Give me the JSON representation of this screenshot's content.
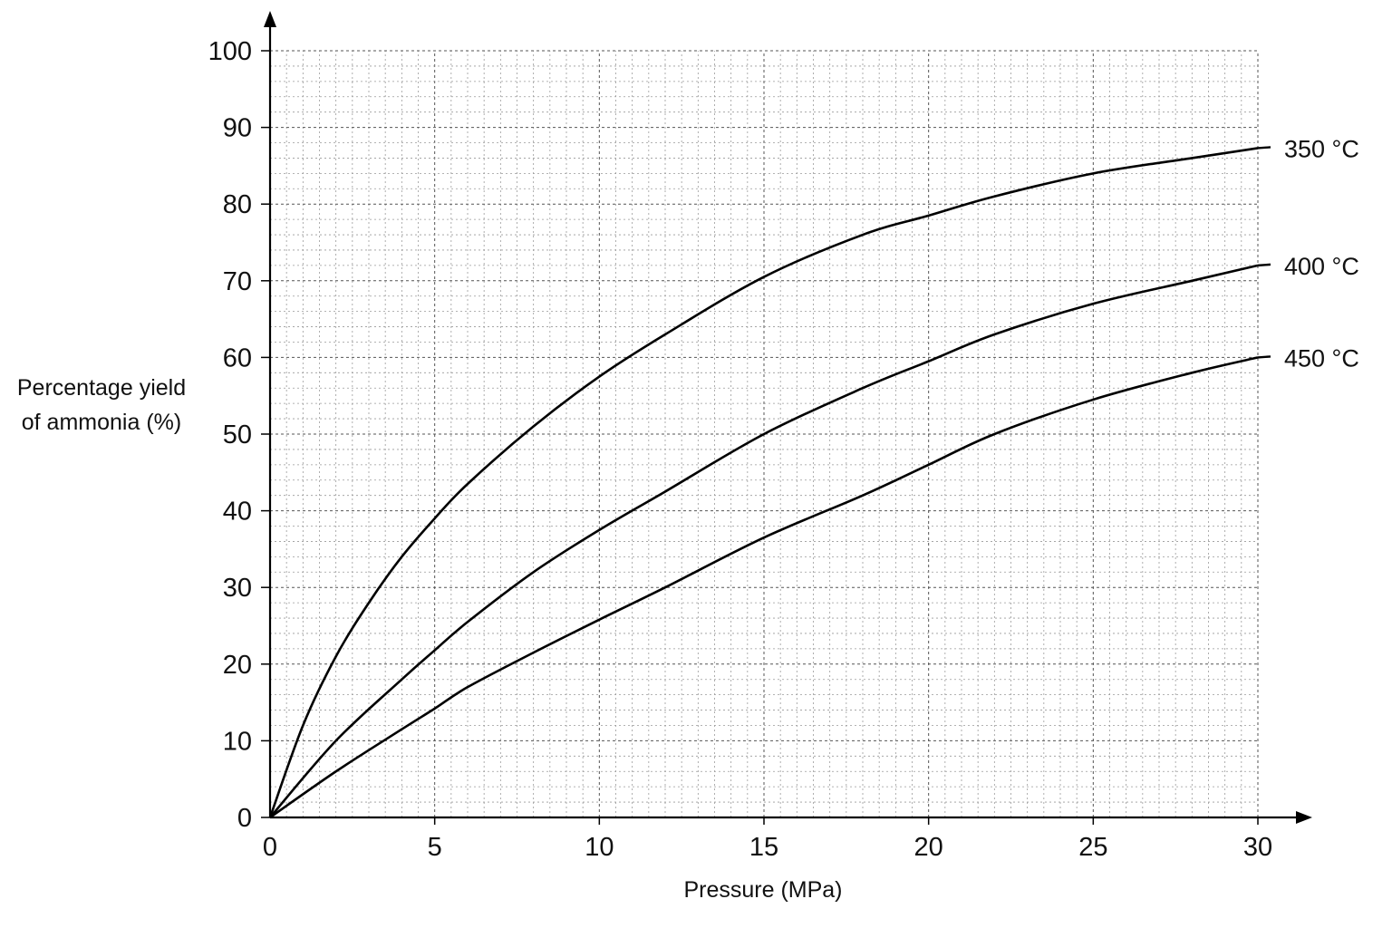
{
  "chart_data": {
    "type": "line",
    "title": "",
    "xlabel": "Pressure (MPa)",
    "ylabel": "Percentage yield of ammonia (%)",
    "ylabel_lines": [
      "Percentage yield",
      "of ammonia (%)"
    ],
    "xlim": [
      0,
      30
    ],
    "ylim": [
      0,
      100
    ],
    "xticks": [
      0,
      5,
      10,
      15,
      20,
      25,
      30
    ],
    "yticks": [
      0,
      10,
      20,
      30,
      40,
      50,
      60,
      70,
      80,
      90,
      100
    ],
    "grid": true,
    "legend": "series labels at right end of lines",
    "series": [
      {
        "name": "350 °C",
        "x": [
          0,
          1,
          2,
          3,
          4,
          5,
          6,
          8,
          10,
          12,
          15,
          18,
          20,
          22,
          25,
          28,
          30
        ],
        "y": [
          0,
          12,
          21,
          28,
          34,
          39,
          43.5,
          51,
          57.5,
          63,
          70.5,
          76,
          78.5,
          81,
          84,
          86,
          87.3
        ]
      },
      {
        "name": "400 °C",
        "x": [
          0,
          2,
          4,
          5,
          6,
          8,
          10,
          12,
          15,
          18,
          20,
          22,
          25,
          28,
          30
        ],
        "y": [
          0,
          10,
          18,
          21.8,
          25.5,
          32,
          37.5,
          42.5,
          50,
          56,
          59.5,
          63,
          67,
          70,
          72
        ]
      },
      {
        "name": "450 °C",
        "x": [
          0,
          2,
          4,
          5,
          6,
          8,
          10,
          12,
          15,
          18,
          20,
          22,
          25,
          28,
          30
        ],
        "y": [
          0,
          6,
          11.5,
          14.2,
          17,
          21.5,
          25.8,
          30,
          36.5,
          42,
          46,
          50,
          54.5,
          58,
          60
        ]
      }
    ]
  }
}
